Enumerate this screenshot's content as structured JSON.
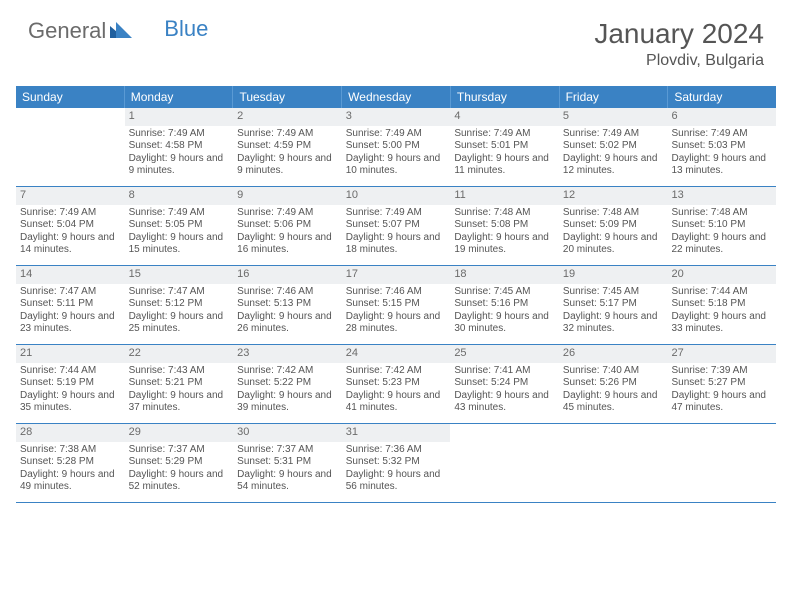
{
  "logo": {
    "part1": "General",
    "part2": "Blue"
  },
  "title": "January 2024",
  "location": "Plovdiv, Bulgaria",
  "colors": {
    "header_bg": "#3a82c4",
    "header_text": "#ffffff",
    "daynum_bg": "#eef0f2",
    "text": "#555555",
    "logo_gray": "#6b6b6b",
    "border": "#3a82c4"
  },
  "weekdays": [
    "Sunday",
    "Monday",
    "Tuesday",
    "Wednesday",
    "Thursday",
    "Friday",
    "Saturday"
  ],
  "weeks": [
    [
      {
        "empty": true
      },
      {
        "num": "1",
        "sunrise": "Sunrise: 7:49 AM",
        "sunset": "Sunset: 4:58 PM",
        "daylight": "Daylight: 9 hours and 9 minutes."
      },
      {
        "num": "2",
        "sunrise": "Sunrise: 7:49 AM",
        "sunset": "Sunset: 4:59 PM",
        "daylight": "Daylight: 9 hours and 9 minutes."
      },
      {
        "num": "3",
        "sunrise": "Sunrise: 7:49 AM",
        "sunset": "Sunset: 5:00 PM",
        "daylight": "Daylight: 9 hours and 10 minutes."
      },
      {
        "num": "4",
        "sunrise": "Sunrise: 7:49 AM",
        "sunset": "Sunset: 5:01 PM",
        "daylight": "Daylight: 9 hours and 11 minutes."
      },
      {
        "num": "5",
        "sunrise": "Sunrise: 7:49 AM",
        "sunset": "Sunset: 5:02 PM",
        "daylight": "Daylight: 9 hours and 12 minutes."
      },
      {
        "num": "6",
        "sunrise": "Sunrise: 7:49 AM",
        "sunset": "Sunset: 5:03 PM",
        "daylight": "Daylight: 9 hours and 13 minutes."
      }
    ],
    [
      {
        "num": "7",
        "sunrise": "Sunrise: 7:49 AM",
        "sunset": "Sunset: 5:04 PM",
        "daylight": "Daylight: 9 hours and 14 minutes."
      },
      {
        "num": "8",
        "sunrise": "Sunrise: 7:49 AM",
        "sunset": "Sunset: 5:05 PM",
        "daylight": "Daylight: 9 hours and 15 minutes."
      },
      {
        "num": "9",
        "sunrise": "Sunrise: 7:49 AM",
        "sunset": "Sunset: 5:06 PM",
        "daylight": "Daylight: 9 hours and 16 minutes."
      },
      {
        "num": "10",
        "sunrise": "Sunrise: 7:49 AM",
        "sunset": "Sunset: 5:07 PM",
        "daylight": "Daylight: 9 hours and 18 minutes."
      },
      {
        "num": "11",
        "sunrise": "Sunrise: 7:48 AM",
        "sunset": "Sunset: 5:08 PM",
        "daylight": "Daylight: 9 hours and 19 minutes."
      },
      {
        "num": "12",
        "sunrise": "Sunrise: 7:48 AM",
        "sunset": "Sunset: 5:09 PM",
        "daylight": "Daylight: 9 hours and 20 minutes."
      },
      {
        "num": "13",
        "sunrise": "Sunrise: 7:48 AM",
        "sunset": "Sunset: 5:10 PM",
        "daylight": "Daylight: 9 hours and 22 minutes."
      }
    ],
    [
      {
        "num": "14",
        "sunrise": "Sunrise: 7:47 AM",
        "sunset": "Sunset: 5:11 PM",
        "daylight": "Daylight: 9 hours and 23 minutes."
      },
      {
        "num": "15",
        "sunrise": "Sunrise: 7:47 AM",
        "sunset": "Sunset: 5:12 PM",
        "daylight": "Daylight: 9 hours and 25 minutes."
      },
      {
        "num": "16",
        "sunrise": "Sunrise: 7:46 AM",
        "sunset": "Sunset: 5:13 PM",
        "daylight": "Daylight: 9 hours and 26 minutes."
      },
      {
        "num": "17",
        "sunrise": "Sunrise: 7:46 AM",
        "sunset": "Sunset: 5:15 PM",
        "daylight": "Daylight: 9 hours and 28 minutes."
      },
      {
        "num": "18",
        "sunrise": "Sunrise: 7:45 AM",
        "sunset": "Sunset: 5:16 PM",
        "daylight": "Daylight: 9 hours and 30 minutes."
      },
      {
        "num": "19",
        "sunrise": "Sunrise: 7:45 AM",
        "sunset": "Sunset: 5:17 PM",
        "daylight": "Daylight: 9 hours and 32 minutes."
      },
      {
        "num": "20",
        "sunrise": "Sunrise: 7:44 AM",
        "sunset": "Sunset: 5:18 PM",
        "daylight": "Daylight: 9 hours and 33 minutes."
      }
    ],
    [
      {
        "num": "21",
        "sunrise": "Sunrise: 7:44 AM",
        "sunset": "Sunset: 5:19 PM",
        "daylight": "Daylight: 9 hours and 35 minutes."
      },
      {
        "num": "22",
        "sunrise": "Sunrise: 7:43 AM",
        "sunset": "Sunset: 5:21 PM",
        "daylight": "Daylight: 9 hours and 37 minutes."
      },
      {
        "num": "23",
        "sunrise": "Sunrise: 7:42 AM",
        "sunset": "Sunset: 5:22 PM",
        "daylight": "Daylight: 9 hours and 39 minutes."
      },
      {
        "num": "24",
        "sunrise": "Sunrise: 7:42 AM",
        "sunset": "Sunset: 5:23 PM",
        "daylight": "Daylight: 9 hours and 41 minutes."
      },
      {
        "num": "25",
        "sunrise": "Sunrise: 7:41 AM",
        "sunset": "Sunset: 5:24 PM",
        "daylight": "Daylight: 9 hours and 43 minutes."
      },
      {
        "num": "26",
        "sunrise": "Sunrise: 7:40 AM",
        "sunset": "Sunset: 5:26 PM",
        "daylight": "Daylight: 9 hours and 45 minutes."
      },
      {
        "num": "27",
        "sunrise": "Sunrise: 7:39 AM",
        "sunset": "Sunset: 5:27 PM",
        "daylight": "Daylight: 9 hours and 47 minutes."
      }
    ],
    [
      {
        "num": "28",
        "sunrise": "Sunrise: 7:38 AM",
        "sunset": "Sunset: 5:28 PM",
        "daylight": "Daylight: 9 hours and 49 minutes."
      },
      {
        "num": "29",
        "sunrise": "Sunrise: 7:37 AM",
        "sunset": "Sunset: 5:29 PM",
        "daylight": "Daylight: 9 hours and 52 minutes."
      },
      {
        "num": "30",
        "sunrise": "Sunrise: 7:37 AM",
        "sunset": "Sunset: 5:31 PM",
        "daylight": "Daylight: 9 hours and 54 minutes."
      },
      {
        "num": "31",
        "sunrise": "Sunrise: 7:36 AM",
        "sunset": "Sunset: 5:32 PM",
        "daylight": "Daylight: 9 hours and 56 minutes."
      },
      {
        "empty": true
      },
      {
        "empty": true
      },
      {
        "empty": true
      }
    ]
  ]
}
